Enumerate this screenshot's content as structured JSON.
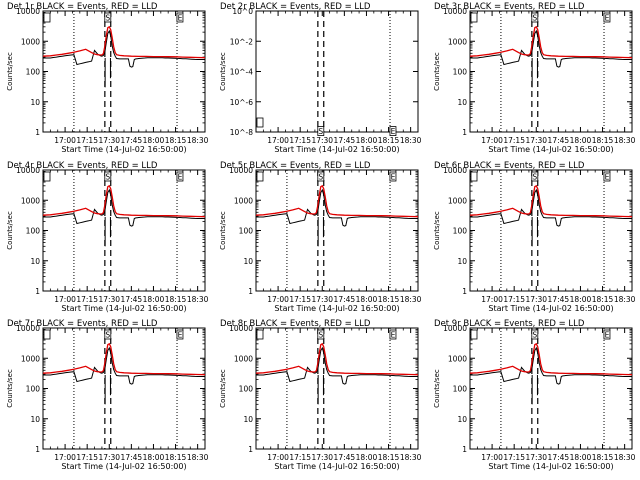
{
  "figure": {
    "grid_rows": 3,
    "grid_cols": 3,
    "background": "#ffffff",
    "events_color": "#000000",
    "lld_color": "#e00000"
  },
  "chart_data": [
    {
      "type": "line",
      "title": "Det 1r BLACK = Events, RED = LLD",
      "xlabel": "Start Time (14-Jul-02 16:50:00)",
      "ylabel": "Counts/sec",
      "yscale": "log",
      "ylim": [
        1,
        10000
      ],
      "yticks": [
        "1",
        "10",
        "100",
        "1000",
        "10000"
      ],
      "xlim_minutes": [
        -5,
        105
      ],
      "xticks": [
        "17:00",
        "17:15",
        "17:30",
        "17:45",
        "18:00",
        "18:15",
        "18:30"
      ],
      "xtick_minutes": [
        10,
        25,
        40,
        55,
        70,
        85,
        100
      ],
      "dotted_vlines_minutes": [
        16,
        86
      ],
      "dashed_vlines_minutes": [
        37,
        41
      ],
      "markers": [
        {
          "label": "S",
          "x_minutes": 39,
          "y": 12000
        },
        {
          "label": "E",
          "x_minutes": 88,
          "y": 12000
        }
      ],
      "has_data": true
    },
    {
      "type": "line",
      "title": "Det 2r BLACK = Events, RED = LLD",
      "xlabel": "Start Time (14-Jul-02 16:50:00)",
      "ylabel": "Counts/sec",
      "yscale": "log",
      "ylim": [
        1,
        1e-08
      ],
      "yticks": [
        "10^-8",
        "10^-6",
        "10^-4",
        "10^-2",
        "10^0"
      ],
      "xlim_minutes": [
        -5,
        105
      ],
      "xticks": [
        "17:00",
        "17:15",
        "17:30",
        "17:45",
        "18:00",
        "18:15",
        "18:30"
      ],
      "xtick_minutes": [
        10,
        25,
        40,
        55,
        70,
        85,
        100
      ],
      "dotted_vlines_minutes": [
        86
      ],
      "dashed_vlines_minutes": [
        37,
        41
      ],
      "markers": [
        {
          "label": "S",
          "x_minutes": 39,
          "y": 2
        },
        {
          "label": "E",
          "x_minutes": 88,
          "y": 2
        }
      ],
      "has_data": false
    },
    {
      "type": "line",
      "title": "Det 3r BLACK = Events, RED = LLD",
      "xlabel": "Start Time (14-Jul-02 16:50:00)",
      "ylabel": "Counts/sec",
      "yscale": "log",
      "ylim": [
        1,
        10000
      ],
      "yticks": [
        "1",
        "10",
        "100",
        "1000",
        "10000"
      ],
      "xlim_minutes": [
        -5,
        105
      ],
      "xticks": [
        "17:00",
        "17:15",
        "17:30",
        "17:45",
        "18:00",
        "18:15",
        "18:30"
      ],
      "xtick_minutes": [
        10,
        25,
        40,
        55,
        70,
        85,
        100
      ],
      "dotted_vlines_minutes": [
        16,
        86
      ],
      "dashed_vlines_minutes": [
        37,
        41
      ],
      "markers": [
        {
          "label": "S",
          "x_minutes": 39,
          "y": 12000
        },
        {
          "label": "E",
          "x_minutes": 88,
          "y": 12000
        }
      ],
      "has_data": true
    },
    {
      "type": "line",
      "title": "Det 4r BLACK = Events, RED = LLD",
      "xlabel": "Start Time (14-Jul-02 16:50:00)",
      "ylabel": "Counts/sec",
      "yscale": "log",
      "ylim": [
        1,
        10000
      ],
      "yticks": [
        "1",
        "10",
        "100",
        "1000",
        "10000"
      ],
      "xlim_minutes": [
        -5,
        105
      ],
      "xticks": [
        "17:00",
        "17:15",
        "17:30",
        "17:45",
        "18:00",
        "18:15",
        "18:30"
      ],
      "xtick_minutes": [
        10,
        25,
        40,
        55,
        70,
        85,
        100
      ],
      "dotted_vlines_minutes": [
        16,
        86
      ],
      "dashed_vlines_minutes": [
        37,
        41
      ],
      "markers": [
        {
          "label": "S",
          "x_minutes": 39,
          "y": 12000
        },
        {
          "label": "E",
          "x_minutes": 88,
          "y": 12000
        }
      ],
      "has_data": true
    },
    {
      "type": "line",
      "title": "Det 5r BLACK = Events, RED = LLD",
      "xlabel": "Start Time (14-Jul-02 16:50:00)",
      "ylabel": "Counts/sec",
      "yscale": "log",
      "ylim": [
        1,
        10000
      ],
      "yticks": [
        "1",
        "10",
        "100",
        "1000",
        "10000"
      ],
      "xlim_minutes": [
        -5,
        105
      ],
      "xticks": [
        "17:00",
        "17:15",
        "17:30",
        "17:45",
        "18:00",
        "18:15",
        "18:30"
      ],
      "xtick_minutes": [
        10,
        25,
        40,
        55,
        70,
        85,
        100
      ],
      "dotted_vlines_minutes": [
        16,
        86
      ],
      "dashed_vlines_minutes": [
        37,
        41
      ],
      "markers": [
        {
          "label": "S",
          "x_minutes": 39,
          "y": 12000
        },
        {
          "label": "E",
          "x_minutes": 88,
          "y": 12000
        }
      ],
      "has_data": true
    },
    {
      "type": "line",
      "title": "Det 6r BLACK = Events, RED = LLD",
      "xlabel": "Start Time (14-Jul-02 16:50:00)",
      "ylabel": "Counts/sec",
      "yscale": "log",
      "ylim": [
        1,
        10000
      ],
      "yticks": [
        "1",
        "10",
        "100",
        "1000",
        "10000"
      ],
      "xlim_minutes": [
        -5,
        105
      ],
      "xticks": [
        "17:00",
        "17:15",
        "17:30",
        "17:45",
        "18:00",
        "18:15",
        "18:30"
      ],
      "xtick_minutes": [
        10,
        25,
        40,
        55,
        70,
        85,
        100
      ],
      "dotted_vlines_minutes": [
        16,
        86
      ],
      "dashed_vlines_minutes": [
        37,
        41
      ],
      "markers": [
        {
          "label": "S",
          "x_minutes": 39,
          "y": 12000
        },
        {
          "label": "E",
          "x_minutes": 88,
          "y": 12000
        }
      ],
      "has_data": true
    },
    {
      "type": "line",
      "title": "Det 7r BLACK = Events, RED = LLD",
      "xlabel": "Start Time (14-Jul-02 16:50:00)",
      "ylabel": "Counts/sec",
      "yscale": "log",
      "ylim": [
        1,
        10000
      ],
      "yticks": [
        "1",
        "10",
        "100",
        "1000",
        "10000"
      ],
      "xlim_minutes": [
        -5,
        105
      ],
      "xticks": [
        "17:00",
        "17:15",
        "17:30",
        "17:45",
        "18:00",
        "18:15",
        "18:30"
      ],
      "xtick_minutes": [
        10,
        25,
        40,
        55,
        70,
        85,
        100
      ],
      "dotted_vlines_minutes": [
        16,
        86
      ],
      "dashed_vlines_minutes": [
        37,
        41
      ],
      "markers": [
        {
          "label": "S",
          "x_minutes": 39,
          "y": 12000
        },
        {
          "label": "E",
          "x_minutes": 88,
          "y": 12000
        }
      ],
      "has_data": true
    },
    {
      "type": "line",
      "title": "Det 8r BLACK = Events, RED = LLD",
      "xlabel": "Start Time (14-Jul-02 16:50:00)",
      "ylabel": "Counts/sec",
      "yscale": "log",
      "ylim": [
        1,
        10000
      ],
      "yticks": [
        "1",
        "10",
        "100",
        "1000",
        "10000"
      ],
      "xlim_minutes": [
        -5,
        105
      ],
      "xticks": [
        "17:00",
        "17:15",
        "17:30",
        "17:45",
        "18:00",
        "18:15",
        "18:30"
      ],
      "xtick_minutes": [
        10,
        25,
        40,
        55,
        70,
        85,
        100
      ],
      "dotted_vlines_minutes": [
        16,
        86
      ],
      "dashed_vlines_minutes": [
        37,
        41
      ],
      "markers": [
        {
          "label": "S",
          "x_minutes": 39,
          "y": 12000
        },
        {
          "label": "E",
          "x_minutes": 88,
          "y": 12000
        }
      ],
      "has_data": true
    },
    {
      "type": "line",
      "title": "Det 9r BLACK = Events, RED = LLD",
      "xlabel": "Start Time (14-Jul-02 16:50:00)",
      "ylabel": "Counts/sec",
      "yscale": "log",
      "ylim": [
        1,
        10000
      ],
      "yticks": [
        "1",
        "10",
        "100",
        "1000",
        "10000"
      ],
      "xlim_minutes": [
        -5,
        105
      ],
      "xticks": [
        "17:00",
        "17:15",
        "17:30",
        "17:45",
        "18:00",
        "18:15",
        "18:30"
      ],
      "xtick_minutes": [
        10,
        25,
        40,
        55,
        70,
        85,
        100
      ],
      "dotted_vlines_minutes": [
        16,
        86
      ],
      "dashed_vlines_minutes": [
        37,
        41
      ],
      "markers": [
        {
          "label": "S",
          "x_minutes": 39,
          "y": 12000
        },
        {
          "label": "E",
          "x_minutes": 88,
          "y": 12000
        }
      ],
      "has_data": true
    }
  ],
  "series": {
    "events": {
      "name": "Events",
      "color": "#000000",
      "x_minutes": [
        -5,
        0,
        2,
        4,
        6,
        8,
        10,
        12,
        14,
        16,
        18,
        20,
        22,
        24,
        26,
        28,
        30,
        32,
        33,
        34,
        35,
        36,
        37,
        38,
        39,
        40,
        41,
        42,
        43,
        44,
        45,
        47,
        49,
        50,
        51,
        52,
        53,
        54,
        55,
        56,
        57,
        58,
        59,
        60,
        62,
        64,
        66,
        68,
        70,
        72,
        74,
        76,
        78,
        80,
        82,
        84,
        86,
        88,
        90,
        92,
        94,
        96,
        98,
        100,
        102,
        104,
        105
      ],
      "y": [
        280,
        280,
        290,
        300,
        310,
        320,
        330,
        340,
        350,
        360,
        170,
        180,
        190,
        200,
        210,
        220,
        500,
        380,
        350,
        330,
        320,
        340,
        450,
        900,
        1800,
        2200,
        1500,
        700,
        420,
        320,
        270,
        260,
        260,
        260,
        260,
        260,
        260,
        150,
        140,
        145,
        250,
        260,
        265,
        270,
        275,
        280,
        285,
        285,
        285,
        285,
        285,
        285,
        280,
        280,
        278,
        275,
        272,
        270,
        265,
        262,
        258,
        255,
        252,
        250,
        250,
        250,
        250
      ]
    },
    "lld": {
      "name": "LLD",
      "color": "#e00000",
      "x_minutes": [
        -5,
        0,
        4,
        8,
        12,
        16,
        20,
        24,
        28,
        30,
        32,
        34,
        35,
        36,
        37,
        38,
        39,
        40,
        41,
        42,
        43,
        44,
        45,
        47,
        50,
        55,
        60,
        65,
        70,
        75,
        80,
        85,
        90,
        95,
        100,
        105
      ],
      "y": [
        320,
        330,
        350,
        370,
        400,
        430,
        480,
        540,
        420,
        380,
        360,
        350,
        355,
        390,
        700,
        1500,
        2800,
        3000,
        2400,
        1300,
        650,
        420,
        360,
        340,
        330,
        320,
        315,
        315,
        312,
        310,
        308,
        305,
        300,
        295,
        290,
        285
      ]
    }
  }
}
